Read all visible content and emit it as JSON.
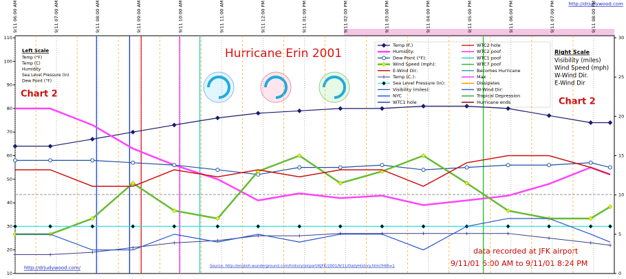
{
  "chart_data": {
    "type": "line",
    "title": "Hurricane Erin 2001",
    "chart_label": "Chart 2",
    "xlim": [
      6,
      20.5
    ],
    "xticks": [
      {
        "value": 6,
        "label": "9/11 06:00 AM"
      },
      {
        "value": 7,
        "label": "9/11 07:00 AM"
      },
      {
        "value": 8,
        "label": "9/11 08:00 AM"
      },
      {
        "value": 9,
        "label": "9/11 09:00 AM"
      },
      {
        "value": 10,
        "label": "9/11 10:00 AM"
      },
      {
        "value": 11,
        "label": "9/11 11:00 AM"
      },
      {
        "value": 12,
        "label": "9/11 12:00 PM"
      },
      {
        "value": 13,
        "label": "9/11 01:00 PM"
      },
      {
        "value": 14,
        "label": "9/11 02:00 PM"
      },
      {
        "value": 15,
        "label": "9/11 03:00 PM"
      },
      {
        "value": 16,
        "label": "9/11 04:00 PM"
      },
      {
        "value": 17,
        "label": "9/11 05:00 PM"
      },
      {
        "value": 18,
        "label": "9/11 06:00 PM"
      },
      {
        "value": 19,
        "label": "9/11 07:00 PM"
      },
      {
        "value": 20,
        "label": "9/11 08:00 PM"
      }
    ],
    "ylim": [
      10,
      110
    ],
    "yticks": [
      10,
      20,
      30,
      40,
      50,
      60,
      70,
      80,
      90,
      100,
      110
    ],
    "y2lim": [
      0,
      30
    ],
    "y2ticks": [
      0,
      5,
      10,
      15,
      20,
      25,
      30
    ],
    "x": [
      6,
      6.85,
      7.87,
      8.85,
      9.85,
      10.9,
      11.88,
      12.88,
      13.87,
      14.88,
      15.88,
      16.93,
      17.93,
      18.92,
      19.93,
      20.4
    ],
    "series": [
      {
        "name": "Temp (F.)",
        "color": "#1a1a6e",
        "marker": "diamond",
        "width": 1.2,
        "values": [
          64,
          64,
          67,
          70,
          73,
          76,
          78,
          79,
          80,
          80,
          81,
          81,
          80,
          77,
          74,
          74
        ]
      },
      {
        "name": "Humidity:",
        "color": "#ff44ff",
        "marker": "none",
        "width": 2.5,
        "values": [
          80,
          80,
          73,
          63,
          56,
          50,
          41,
          44,
          42,
          43,
          39,
          41,
          43,
          48,
          55,
          52
        ]
      },
      {
        "name": "Dew Point (°F):",
        "color": "#1f4fa8",
        "marker": "circle",
        "width": 1.2,
        "values": [
          58,
          58,
          58,
          57,
          56,
          54,
          52,
          55,
          55,
          56,
          54,
          55,
          56,
          56,
          57,
          55
        ]
      },
      {
        "name": "Wind Speed (mph):",
        "color": "#66bb33",
        "marker": "diamond-yellow",
        "width": 2.5,
        "axis": "y2",
        "values": [
          5,
          5,
          7,
          11.5,
          8,
          7,
          13,
          15,
          11.5,
          13,
          15,
          11.5,
          8,
          7,
          7,
          8.5
        ]
      },
      {
        "name": "E-Wind Dir:",
        "color": "#cc1111",
        "marker": "none",
        "width": 1.5,
        "values": [
          54,
          54,
          47,
          47,
          54,
          51,
          54,
          51,
          54,
          54,
          47,
          57,
          60,
          60,
          55,
          52
        ]
      },
      {
        "name": "Temp (C.):",
        "color": "#3a3a8a",
        "marker": "cross",
        "width": 1,
        "values": [
          18,
          18,
          19,
          21,
          23,
          24,
          26,
          26,
          27,
          27,
          27,
          27,
          27,
          25,
          23,
          22
        ]
      },
      {
        "name": "Sea Level Pressure (in):",
        "color": "#33dddd",
        "marker": "diamond-black",
        "width": 1.2,
        "values": [
          30,
          30,
          30,
          30,
          30,
          30,
          30,
          30,
          30,
          30,
          30,
          30,
          30,
          30,
          30,
          30
        ]
      },
      {
        "name": "Visibility (miles):",
        "color": "#2255cc",
        "marker": "none",
        "width": 1.2,
        "axis": "y2",
        "values": [
          5,
          5,
          3,
          3,
          5,
          4,
          5,
          4,
          5,
          5,
          3,
          6,
          7,
          7,
          5,
          4
        ]
      }
    ],
    "events": [
      {
        "name": "NYC",
        "color": "#2255ee",
        "x": 7.97
      },
      {
        "name": "WTC1 hole",
        "color": "#2244aa",
        "x": 8.77
      },
      {
        "name": "WTC2 hole",
        "color": "#dd2222",
        "x": 9.05
      },
      {
        "name": "WTC2 poof",
        "color": "#ee33ee",
        "x": 9.98
      },
      {
        "name": "WTC1 poof",
        "color": "#33cccc",
        "x": 10.47
      },
      {
        "name": "WTC7 poof",
        "color": "#33bb33",
        "x": 17.33
      }
    ],
    "legend_only": [
      {
        "name": "Becomes Hurricane",
        "color": "#33aaaa"
      },
      {
        "name": "Max",
        "color": "#ff33ff"
      },
      {
        "name": "Dissipates",
        "color": "#ff9900"
      },
      {
        "name": "W-Wind Dir:",
        "color": "#3366cc"
      },
      {
        "name": "Tropical Depression",
        "color": "#33aa33"
      },
      {
        "name": "Hurricane ends",
        "color": "#990000"
      }
    ],
    "reference_lines": [
      {
        "y": 43.5,
        "color": "#aaaaaa"
      }
    ],
    "left_scale": {
      "title": "Left Scale",
      "items": [
        "Temp (°F)",
        "Temp (C)",
        "Humidity",
        "Sea Level Pressure (in)",
        "Dew Point (°F)"
      ]
    },
    "right_scale": {
      "title": "Right Scale",
      "items": [
        "Visibility (miles)",
        "Wind Speed (mph)",
        "W-Wind Dir.",
        "E-Wind Dir"
      ]
    },
    "annotations": [
      "data recorded at JFK airport",
      "9/11/01 6:00 AM to 9/11/01 8:24 PM"
    ],
    "source": "Source:  http://english.wunderground.com/history/airport/KJFK/2001/9/11/DailyHistory.html?HIR=1",
    "link_bottom": "http://drjudywood.com/",
    "link_top": "http://drjudywood.com"
  }
}
